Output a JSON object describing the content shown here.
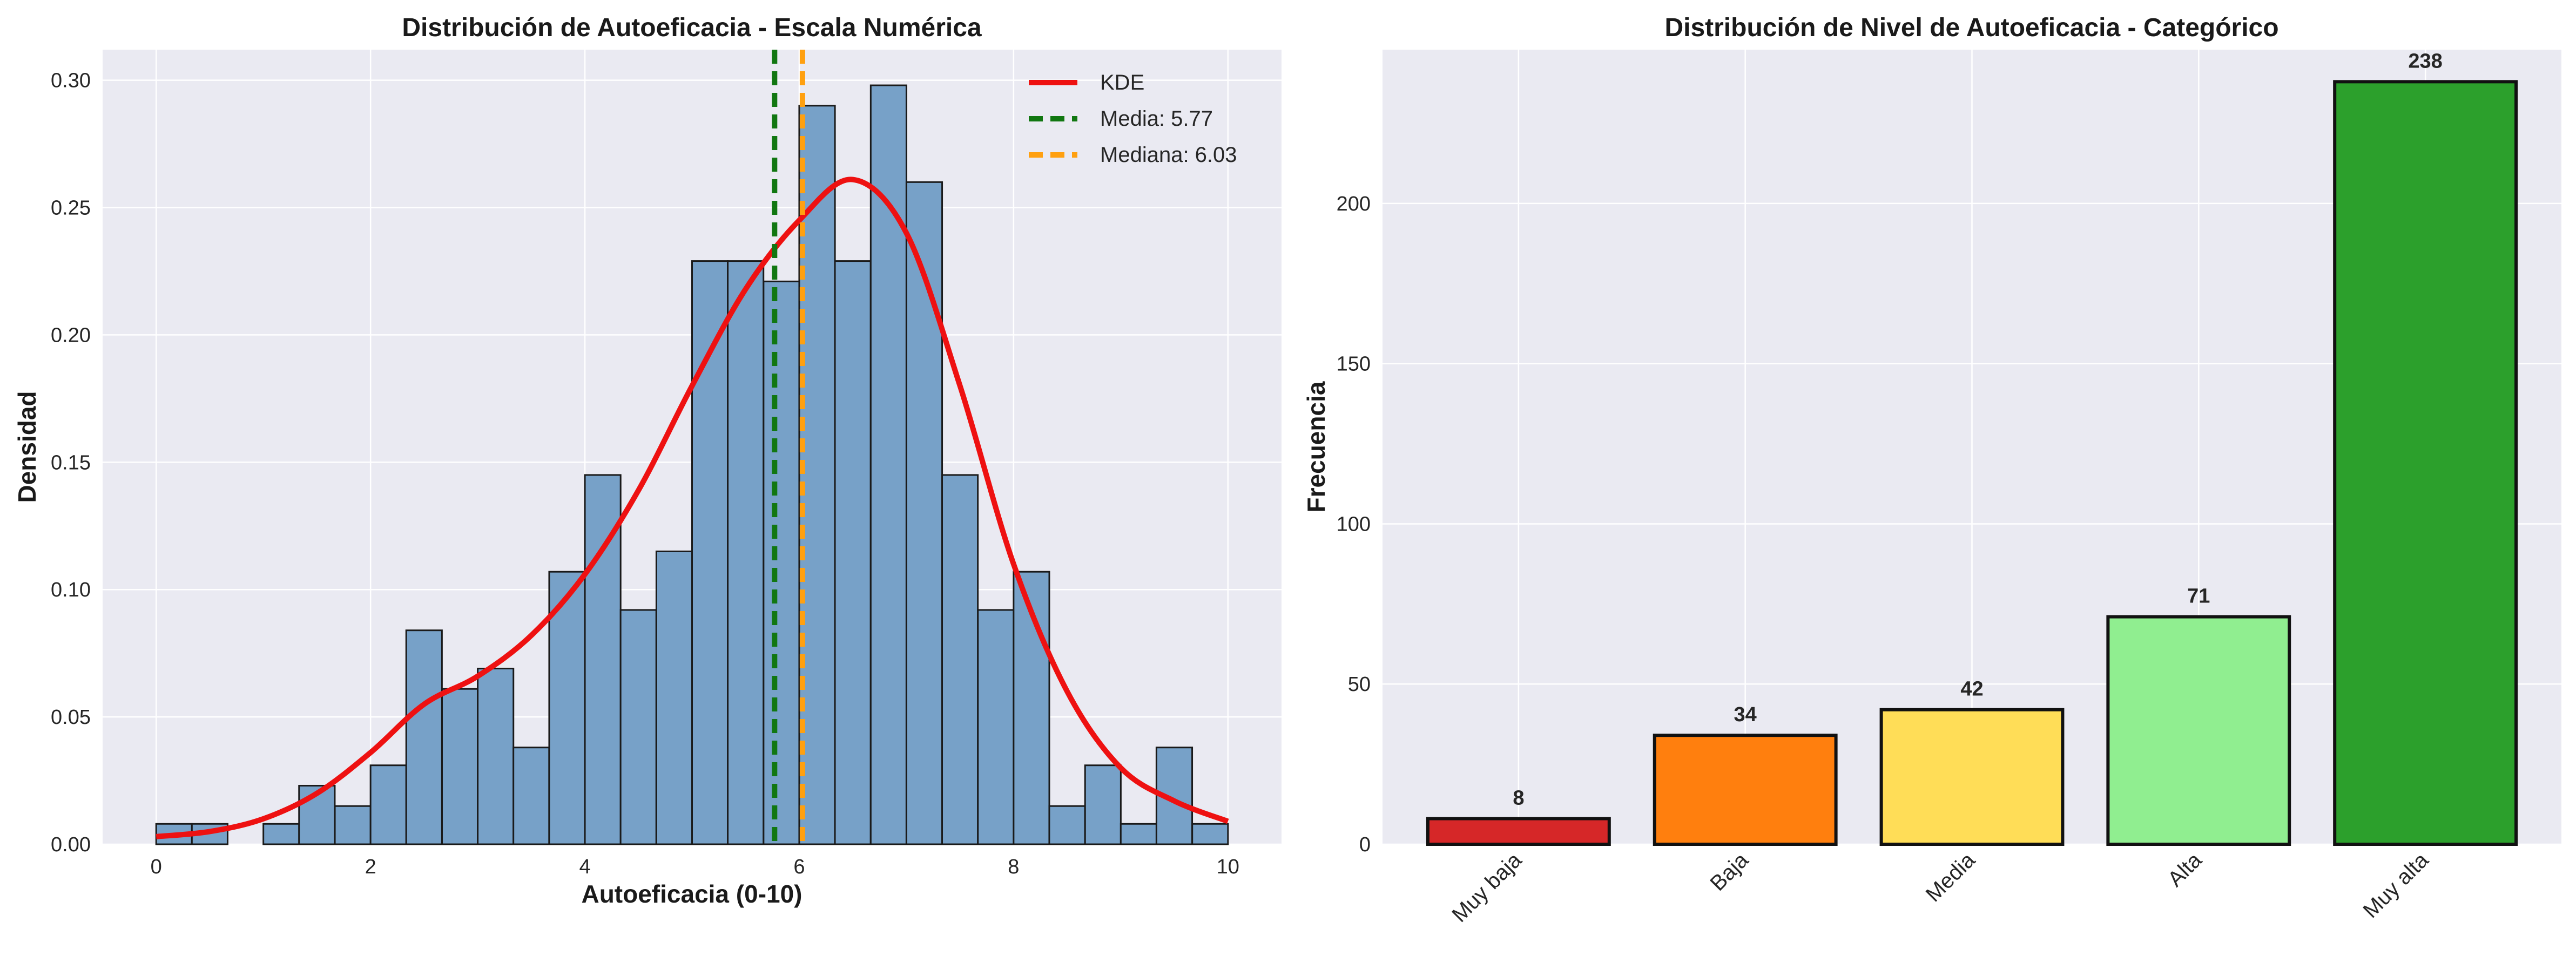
{
  "chart_data": [
    {
      "type": "bar",
      "title": "Distribución de Autoeficacia - Escala Numérica",
      "xlabel": "Autoeficacia (0-10)",
      "ylabel": "Densidad",
      "xlim": [
        -0.5,
        10.5
      ],
      "ylim": [
        0,
        0.312
      ],
      "grid": true,
      "legend_position": "top-right",
      "xticks": [
        0,
        2,
        4,
        6,
        8,
        10
      ],
      "yticks": [
        0.0,
        0.05,
        0.1,
        0.15,
        0.2,
        0.25,
        0.3
      ],
      "ytick_labels": [
        "0.00",
        "0.05",
        "0.10",
        "0.15",
        "0.20",
        "0.25",
        "0.30"
      ],
      "bin_width": 0.3333,
      "bin_starts": [
        0.0,
        0.333,
        0.667,
        1.0,
        1.333,
        1.667,
        2.0,
        2.333,
        2.667,
        3.0,
        3.333,
        3.667,
        4.0,
        4.333,
        4.667,
        5.0,
        5.333,
        5.667,
        6.0,
        6.333,
        6.667,
        7.0,
        7.333,
        7.667,
        8.0,
        8.333,
        8.667,
        9.0,
        9.333,
        9.667
      ],
      "density": [
        0.008,
        0.008,
        0.0,
        0.008,
        0.023,
        0.015,
        0.031,
        0.084,
        0.061,
        0.069,
        0.038,
        0.107,
        0.145,
        0.092,
        0.115,
        0.229,
        0.229,
        0.221,
        0.29,
        0.229,
        0.298,
        0.26,
        0.145,
        0.092,
        0.107,
        0.015,
        0.031,
        0.008,
        0.038,
        0.008
      ],
      "kde": {
        "label": "KDE",
        "color": "#ee1111",
        "x": [
          0,
          0.5,
          1.0,
          1.5,
          2.0,
          2.5,
          3.0,
          3.5,
          4.0,
          4.5,
          5.0,
          5.5,
          6.0,
          6.5,
          7.0,
          7.5,
          8.0,
          8.5,
          9.0,
          9.5,
          10.0
        ],
        "y": [
          0.003,
          0.005,
          0.01,
          0.02,
          0.036,
          0.055,
          0.066,
          0.082,
          0.106,
          0.139,
          0.18,
          0.218,
          0.245,
          0.261,
          0.24,
          0.18,
          0.11,
          0.06,
          0.03,
          0.017,
          0.009
        ]
      },
      "mean": {
        "label": "Media: 5.77",
        "value": 5.77,
        "color": "#117711"
      },
      "median": {
        "label": "Mediana: 6.03",
        "value": 6.03,
        "color": "#ffa010"
      }
    },
    {
      "type": "bar",
      "title": "Distribución de Nivel de Autoeficacia - Categórico",
      "xlabel": "",
      "ylabel": "Frecuencia",
      "ylim": [
        0,
        248
      ],
      "grid": true,
      "yticks": [
        0,
        50,
        100,
        150,
        200
      ],
      "categories": [
        "Muy baja",
        "Baja",
        "Media",
        "Alta",
        "Muy alta"
      ],
      "values": [
        8,
        34,
        42,
        71,
        238
      ],
      "colors": [
        "#d62728",
        "#ff7f0e",
        "#ffdd57",
        "#90ee90",
        "#2ca02c"
      ]
    }
  ]
}
